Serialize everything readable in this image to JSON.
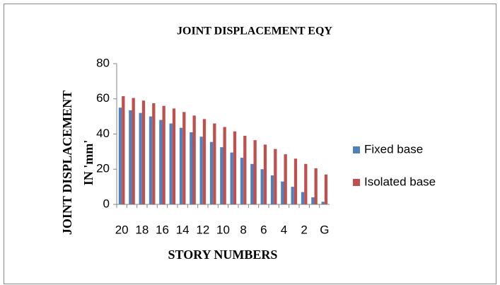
{
  "chart_data": {
    "type": "bar",
    "title": "JOINT DISPLACEMENT EQY",
    "xlabel": "STORY NUMBERS",
    "ylabel": [
      "JOINT DISPLACEMENT",
      "IN 'mm'"
    ],
    "categories": [
      "20",
      null,
      "18",
      null,
      "16",
      null,
      "14",
      null,
      "12",
      null,
      "10",
      null,
      "8",
      null,
      "6",
      null,
      "4",
      null,
      "2",
      null,
      "G"
    ],
    "series": [
      {
        "name": "Fixed base",
        "color": "#4f81bd",
        "values": [
          55,
          53.5,
          52,
          50,
          48,
          46,
          43.5,
          41,
          38.5,
          35.5,
          32.5,
          29.5,
          26.5,
          23,
          20,
          16.5,
          13,
          10,
          7,
          4,
          1.5
        ]
      },
      {
        "name": "Isolated base",
        "color": "#c0504d",
        "values": [
          61.5,
          60.5,
          59,
          57.5,
          56,
          54.5,
          52.5,
          50.5,
          48.5,
          46,
          44,
          41.5,
          39,
          36.5,
          34,
          31.5,
          28.5,
          26,
          23,
          20.5,
          17
        ]
      }
    ],
    "ylim": [
      0,
      80
    ],
    "yticks": [
      0,
      20,
      40,
      60,
      80
    ],
    "grid": false,
    "legend": "right"
  }
}
